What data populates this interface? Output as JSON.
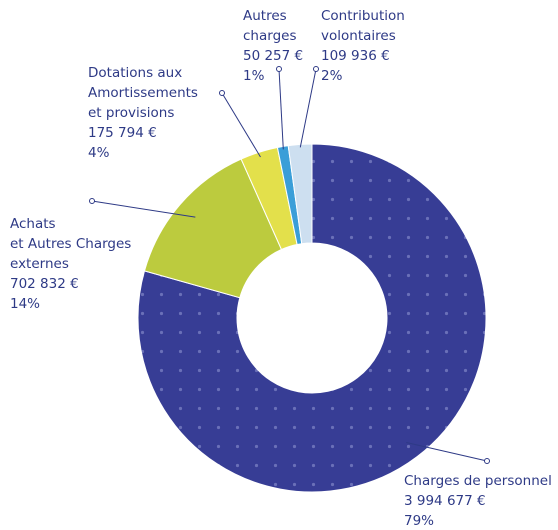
{
  "chart_data": {
    "type": "donut",
    "categories": [
      [
        "Charges de personnel"
      ],
      [
        "Achats",
        "et Autres Charges",
        "externes"
      ],
      [
        "Dotations aux",
        "Amortissements",
        "et provisions"
      ],
      [
        "Autres",
        "charges"
      ],
      [
        "Contribution",
        "volontaires"
      ]
    ],
    "values": [
      3994677,
      702832,
      175794,
      50257,
      109936
    ],
    "value_labels": [
      "3 994 677 €",
      "702 832 €",
      "175 794 €",
      "50 257 €",
      "109 936 €"
    ],
    "percent_labels": [
      "79%",
      "14%",
      "4%",
      "1%",
      "2%"
    ],
    "colors": [
      "#373d95",
      "#bccb3e",
      "#e3e04b",
      "#3a9ed8",
      "#cddff0"
    ]
  }
}
